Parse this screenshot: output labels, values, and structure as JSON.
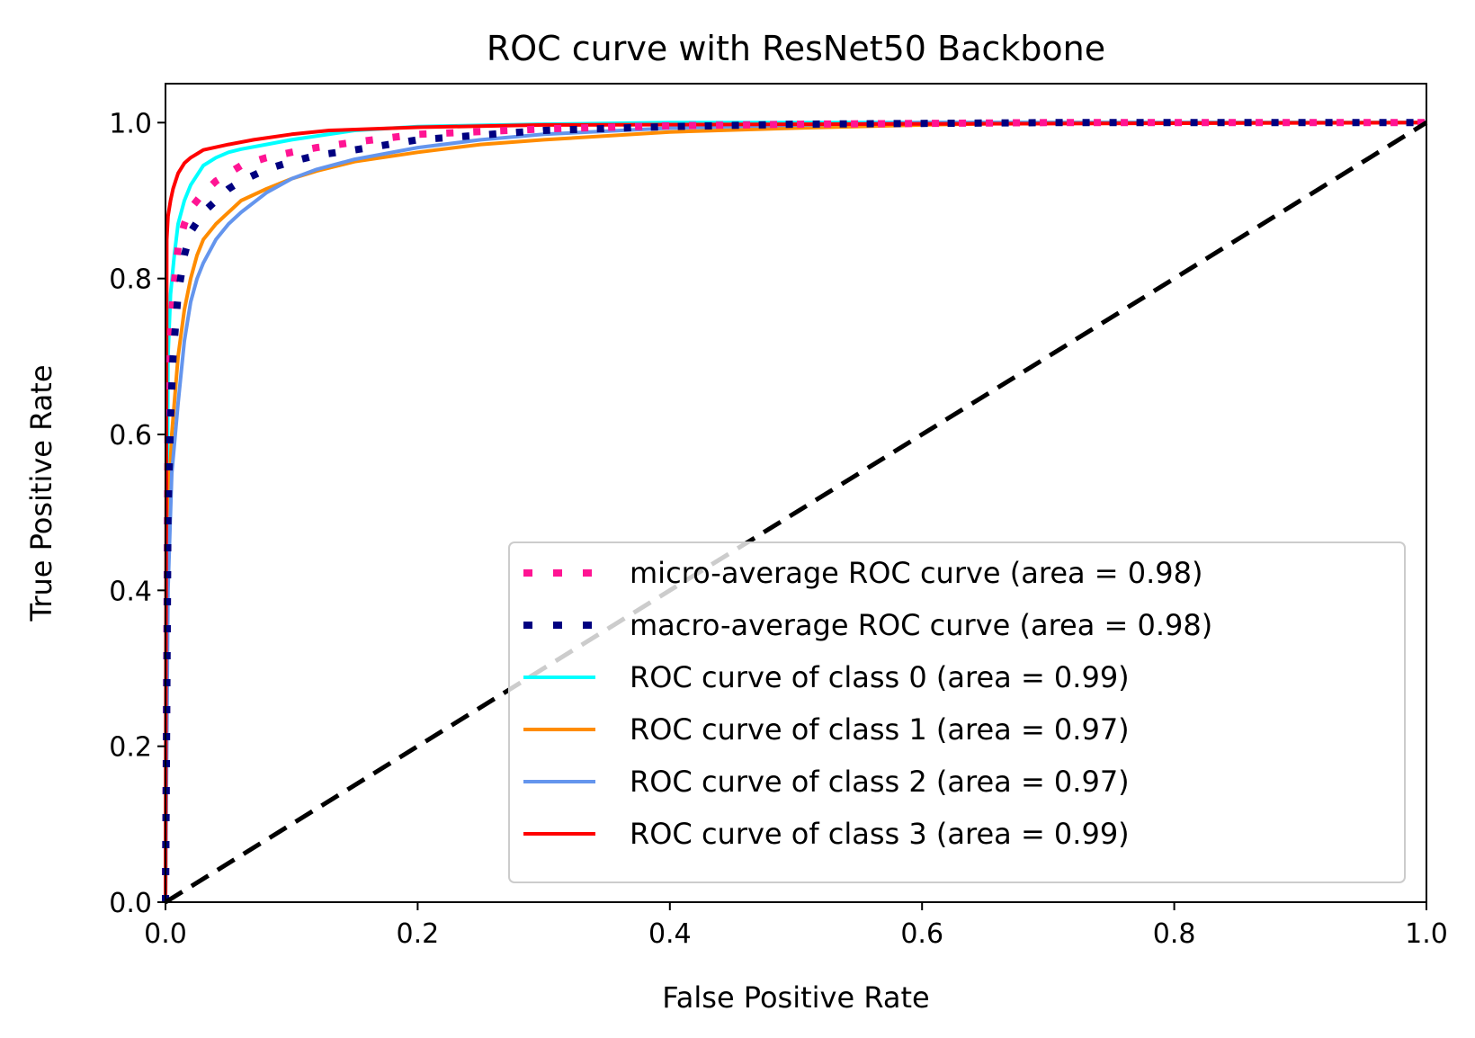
{
  "chart_data": {
    "type": "line",
    "title": "ROC curve with ResNet50 Backbone",
    "xlabel": "False Positive Rate",
    "ylabel": "True Positive Rate",
    "xlim": [
      0.0,
      1.0
    ],
    "ylim": [
      0.0,
      1.05
    ],
    "xticks": [
      "0.0",
      "0.2",
      "0.4",
      "0.6",
      "0.8",
      "1.0"
    ],
    "yticks": [
      "0.0",
      "0.2",
      "0.4",
      "0.6",
      "0.8",
      "1.0"
    ],
    "grid": false,
    "legend_position": "lower right",
    "series": [
      {
        "name": "micro-average ROC curve (area = 0.98)",
        "color": "#ff1493",
        "style": "dotted",
        "area": 0.98,
        "x": [
          0.0,
          0.002,
          0.004,
          0.006,
          0.01,
          0.015,
          0.02,
          0.03,
          0.04,
          0.05,
          0.06,
          0.08,
          0.1,
          0.12,
          0.15,
          0.2,
          0.3,
          0.4,
          0.5,
          0.6,
          0.7,
          0.8,
          1.0
        ],
        "y": [
          0.0,
          0.6,
          0.72,
          0.78,
          0.84,
          0.87,
          0.89,
          0.91,
          0.925,
          0.935,
          0.945,
          0.955,
          0.962,
          0.968,
          0.975,
          0.985,
          0.992,
          0.996,
          0.998,
          0.999,
          1.0,
          1.0,
          1.0
        ]
      },
      {
        "name": "macro-average ROC curve (area = 0.98)",
        "color": "#000080",
        "style": "dotted",
        "area": 0.98,
        "x": [
          0.0,
          0.002,
          0.004,
          0.006,
          0.01,
          0.015,
          0.02,
          0.03,
          0.04,
          0.05,
          0.06,
          0.08,
          0.1,
          0.12,
          0.15,
          0.2,
          0.3,
          0.4,
          0.5,
          0.6,
          0.7,
          0.8,
          1.0
        ],
        "y": [
          0.0,
          0.5,
          0.62,
          0.7,
          0.78,
          0.83,
          0.86,
          0.885,
          0.9,
          0.915,
          0.925,
          0.94,
          0.95,
          0.958,
          0.965,
          0.978,
          0.99,
          0.995,
          0.998,
          0.999,
          1.0,
          1.0,
          1.0
        ]
      },
      {
        "name": "ROC curve of class 0 (area = 0.99)",
        "color": "#00ffff",
        "style": "solid",
        "area": 0.99,
        "x": [
          0.0,
          0.002,
          0.004,
          0.007,
          0.01,
          0.015,
          0.02,
          0.03,
          0.04,
          0.05,
          0.06,
          0.08,
          0.1,
          0.15,
          0.2,
          0.3,
          0.4,
          1.0
        ],
        "y": [
          0.0,
          0.7,
          0.78,
          0.83,
          0.87,
          0.9,
          0.92,
          0.945,
          0.955,
          0.962,
          0.966,
          0.972,
          0.978,
          0.99,
          0.995,
          0.998,
          1.0,
          1.0
        ]
      },
      {
        "name": "ROC curve of class 1 (area = 0.97)",
        "color": "#ff8c00",
        "style": "solid",
        "area": 0.97,
        "x": [
          0.0,
          0.002,
          0.005,
          0.01,
          0.015,
          0.02,
          0.025,
          0.03,
          0.04,
          0.05,
          0.06,
          0.08,
          0.1,
          0.12,
          0.15,
          0.2,
          0.25,
          0.3,
          0.4,
          0.5,
          0.6,
          0.7,
          1.0
        ],
        "y": [
          0.0,
          0.5,
          0.6,
          0.7,
          0.76,
          0.8,
          0.83,
          0.85,
          0.87,
          0.885,
          0.9,
          0.915,
          0.928,
          0.938,
          0.95,
          0.962,
          0.972,
          0.978,
          0.988,
          0.993,
          0.997,
          1.0,
          1.0
        ]
      },
      {
        "name": "ROC curve of class 2 (area = 0.97)",
        "color": "#6495ed",
        "style": "solid",
        "area": 0.97,
        "x": [
          0.0,
          0.002,
          0.005,
          0.01,
          0.015,
          0.02,
          0.025,
          0.03,
          0.04,
          0.05,
          0.06,
          0.08,
          0.1,
          0.12,
          0.15,
          0.2,
          0.25,
          0.3,
          0.4,
          0.5,
          0.6,
          1.0
        ],
        "y": [
          0.0,
          0.4,
          0.55,
          0.64,
          0.72,
          0.77,
          0.8,
          0.82,
          0.85,
          0.87,
          0.885,
          0.91,
          0.928,
          0.94,
          0.953,
          0.968,
          0.978,
          0.985,
          0.993,
          0.997,
          1.0,
          1.0
        ]
      },
      {
        "name": "ROC curve of class 3 (area = 0.99)",
        "color": "#ff0000",
        "style": "solid",
        "area": 0.99,
        "x": [
          0.0,
          0.001,
          0.002,
          0.004,
          0.006,
          0.008,
          0.01,
          0.015,
          0.02,
          0.025,
          0.03,
          0.05,
          0.07,
          0.1,
          0.13,
          0.2,
          0.3,
          1.0
        ],
        "y": [
          0.0,
          0.85,
          0.88,
          0.9,
          0.915,
          0.925,
          0.935,
          0.948,
          0.955,
          0.96,
          0.965,
          0.972,
          0.978,
          0.985,
          0.99,
          0.994,
          0.997,
          1.0
        ]
      },
      {
        "name": "",
        "color": "#000000",
        "style": "dashed",
        "x": [
          0.0,
          1.0
        ],
        "y": [
          0.0,
          1.0
        ]
      }
    ]
  }
}
